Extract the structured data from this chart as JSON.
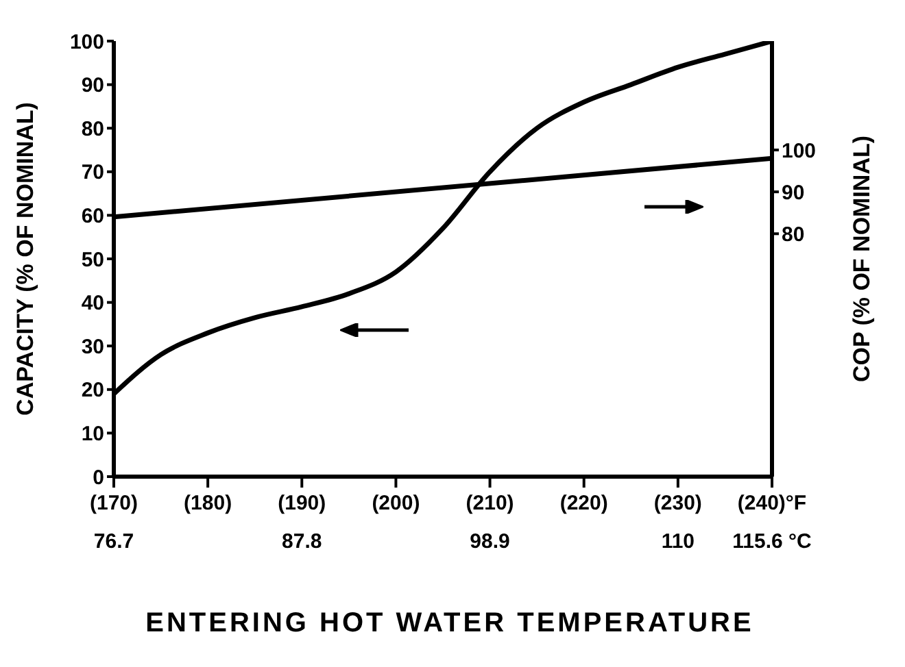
{
  "chart_data": {
    "type": "line",
    "xlabel": "ENTERING HOT WATER TEMPERATURE",
    "ylabel": "CAPACITY (% OF NOMINAL)",
    "y2label": "COP (% OF NOMINAL)",
    "xlim": [
      170,
      240
    ],
    "xticks": [
      {
        "value": 170,
        "label": "(170)\n76.7"
      },
      {
        "value": 180,
        "label": "(180)"
      },
      {
        "value": 190,
        "label": "(190)\n87.8"
      },
      {
        "value": 200,
        "label": "(200)"
      },
      {
        "value": 210,
        "label": "(210)\n98.9"
      },
      {
        "value": 220,
        "label": "(220)"
      },
      {
        "value": 230,
        "label": "(230)\n110"
      },
      {
        "value": 240,
        "label": "(240)°F\n115.6 °C"
      }
    ],
    "ylim": [
      0,
      100
    ],
    "yticks": [
      0,
      10,
      20,
      30,
      40,
      50,
      60,
      70,
      80,
      90,
      100
    ],
    "y2lim": [
      22,
      126
    ],
    "y2ticks": [
      80,
      90,
      100
    ],
    "marker": "none",
    "line_style": "solid",
    "series": [
      {
        "color": "#000000",
        "x": [
          170,
          175,
          180,
          185,
          190,
          195,
          200,
          205,
          210,
          215,
          220,
          225,
          230,
          235,
          240
        ],
        "values": [
          19,
          28,
          33,
          36.5,
          39,
          42,
          47,
          57,
          70,
          80,
          86,
          90,
          94,
          97,
          100
        ]
      },
      {
        "color": "#000000",
        "axis": "y2",
        "x": [
          170,
          240
        ],
        "values": [
          84,
          98
        ]
      }
    ]
  }
}
